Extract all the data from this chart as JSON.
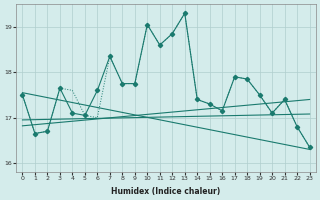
{
  "xlabel": "Humidex (Indice chaleur)",
  "x": [
    0,
    1,
    2,
    3,
    4,
    5,
    6,
    7,
    8,
    9,
    10,
    11,
    12,
    13,
    14,
    15,
    16,
    17,
    18,
    19,
    20,
    21,
    22,
    23
  ],
  "series_main": [
    17.5,
    16.65,
    16.7,
    17.65,
    17.1,
    17.05,
    17.6,
    18.35,
    17.75,
    17.75,
    19.05,
    18.6,
    18.85,
    19.3,
    17.4,
    17.3,
    17.15,
    17.9,
    17.85,
    17.5,
    17.1,
    17.4,
    16.8,
    16.35
  ],
  "series_dotted": [
    17.5,
    16.65,
    16.7,
    17.65,
    17.6,
    17.05,
    17.0,
    18.35,
    17.75,
    17.75,
    19.05,
    18.6,
    18.85,
    19.3,
    17.4,
    17.3,
    17.15,
    17.9,
    17.85,
    17.5,
    17.1,
    17.4,
    16.8,
    16.35
  ],
  "trend_flat1": [
    16.82,
    17.4
  ],
  "trend_flat2": [
    16.95,
    17.08
  ],
  "trend_down": [
    17.55,
    16.3
  ],
  "ylim": [
    15.8,
    19.5
  ],
  "yticks": [
    16,
    17,
    18,
    19
  ],
  "xticks": [
    0,
    1,
    2,
    3,
    4,
    5,
    6,
    7,
    8,
    9,
    10,
    11,
    12,
    13,
    14,
    15,
    16,
    17,
    18,
    19,
    20,
    21,
    22,
    23
  ],
  "line_color": "#1a7a6e",
  "bg_color": "#d4eceb",
  "grid_color": "#b0cece"
}
